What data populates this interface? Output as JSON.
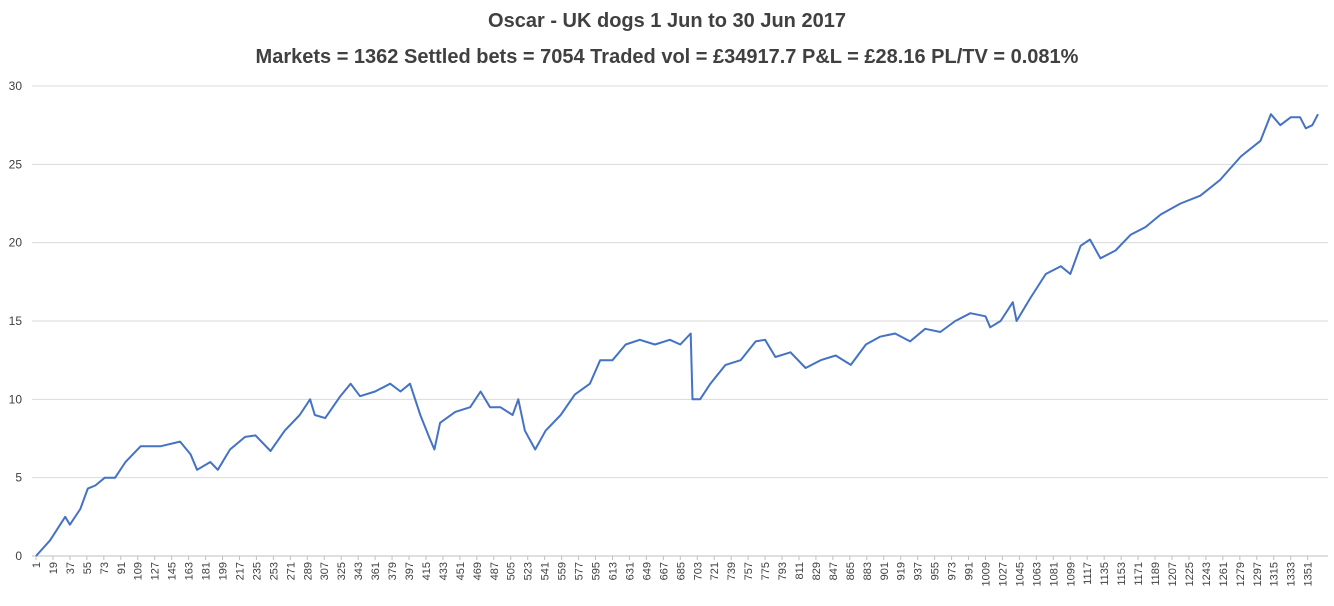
{
  "chart_data": {
    "type": "line",
    "title": "Oscar - UK dogs 1 Jun to 30 Jun 2017",
    "subtitle": "Markets = 1362  Settled bets = 7054  Traded vol = £34917.7  P&L = £28.16  PL/TV = 0.081%",
    "x": [
      1,
      16,
      32,
      37,
      48,
      56,
      64,
      74,
      85,
      96,
      112,
      133,
      154,
      165,
      172,
      186,
      194,
      207,
      223,
      234,
      250,
      265,
      281,
      292,
      297,
      308,
      324,
      335,
      345,
      361,
      377,
      388,
      398,
      409,
      419,
      424,
      430,
      446,
      462,
      473,
      483,
      494,
      507,
      513,
      520,
      531,
      542,
      558,
      573,
      589,
      600,
      613,
      627,
      642,
      658,
      674,
      685,
      696,
      698,
      706,
      717,
      733,
      749,
      765,
      775,
      786,
      802,
      818,
      834,
      850,
      866,
      882,
      897,
      913,
      929,
      945,
      961,
      977,
      993,
      1009,
      1014,
      1025,
      1038,
      1042,
      1057,
      1073,
      1089,
      1099,
      1110,
      1120,
      1131,
      1147,
      1163,
      1179,
      1195,
      1216,
      1237,
      1258,
      1280,
      1301,
      1312,
      1322,
      1333,
      1343,
      1349,
      1356,
      1362
    ],
    "series": [
      {
        "name": "P&L",
        "color": "#4472c4",
        "values": [
          0,
          1.0,
          2.5,
          2.0,
          3.0,
          4.3,
          4.5,
          5.0,
          5.0,
          6.0,
          7.0,
          7.0,
          7.3,
          6.5,
          5.5,
          6.0,
          5.5,
          6.8,
          7.6,
          7.7,
          6.7,
          8.0,
          9.0,
          10.0,
          9.0,
          8.8,
          10.2,
          11.0,
          10.2,
          10.5,
          11.0,
          10.5,
          11.0,
          9.0,
          7.5,
          6.8,
          8.5,
          9.2,
          9.5,
          10.5,
          9.5,
          9.5,
          9.0,
          10.0,
          8.0,
          6.8,
          8.0,
          9.0,
          10.3,
          11.0,
          12.5,
          12.5,
          13.5,
          13.8,
          13.5,
          13.8,
          13.5,
          14.2,
          10.0,
          10.0,
          11.0,
          12.2,
          12.5,
          13.7,
          13.8,
          12.7,
          13.0,
          12.0,
          12.5,
          12.8,
          12.2,
          13.5,
          14.0,
          14.2,
          13.7,
          14.5,
          14.3,
          15.0,
          15.5,
          15.3,
          14.6,
          15.0,
          16.2,
          15.0,
          16.5,
          18.0,
          18.5,
          18.0,
          19.8,
          20.2,
          19.0,
          19.5,
          20.5,
          21.0,
          21.8,
          22.5,
          23.0,
          24.0,
          25.5,
          26.5,
          28.2,
          27.5,
          28.0,
          28.0,
          27.3,
          27.5,
          28.2
        ]
      }
    ],
    "xlim": [
      1,
      1362
    ],
    "xticks": [
      1,
      19,
      37,
      55,
      73,
      91,
      109,
      127,
      145,
      163,
      181,
      199,
      217,
      235,
      253,
      271,
      289,
      307,
      325,
      343,
      361,
      379,
      397,
      415,
      433,
      451,
      469,
      487,
      505,
      523,
      541,
      559,
      577,
      595,
      613,
      631,
      649,
      667,
      685,
      703,
      721,
      739,
      757,
      775,
      793,
      811,
      829,
      847,
      865,
      883,
      901,
      919,
      937,
      955,
      973,
      991,
      1009,
      1027,
      1045,
      1063,
      1081,
      1099,
      1117,
      1135,
      1153,
      1171,
      1189,
      1207,
      1225,
      1243,
      1261,
      1279,
      1297,
      1315,
      1333,
      1351
    ],
    "ylim": [
      0,
      30
    ],
    "yticks": [
      0,
      5,
      10,
      15,
      20,
      25,
      30
    ],
    "grid": true
  }
}
